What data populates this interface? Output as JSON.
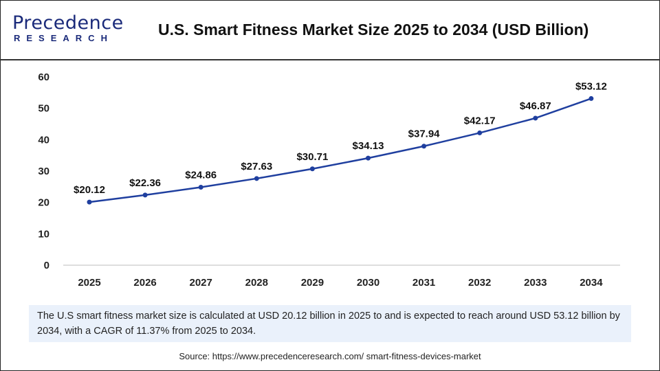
{
  "logo": {
    "line1": "Precedence",
    "line2": "RESEARCH"
  },
  "title": "U.S. Smart Fitness Market Size 2025 to 2034 (USD Billion)",
  "chart_data": {
    "type": "line",
    "categories": [
      "2025",
      "2026",
      "2027",
      "2028",
      "2029",
      "2030",
      "2031",
      "2032",
      "2033",
      "2034"
    ],
    "values": [
      20.12,
      22.36,
      24.86,
      27.63,
      30.71,
      34.13,
      37.94,
      42.17,
      46.87,
      53.12
    ],
    "data_labels": [
      "$20.12",
      "$22.36",
      "$24.86",
      "$27.63",
      "$30.71",
      "$34.13",
      "$37.94",
      "$42.17",
      "$46.87",
      "$53.12"
    ],
    "yticks": [
      0,
      10,
      20,
      30,
      40,
      50,
      60
    ],
    "ylim": [
      0,
      60
    ],
    "grid": false,
    "color": "#1f3f9f"
  },
  "description": "The U.S smart fitness market size is calculated at USD 20.12 billion in 2025 to and is expected to reach around USD 53.12 billion by 2034, with a CAGR of 11.37% from 2025 to 2034.",
  "source": "Source: https://www.precedenceresearch.com/ smart-fitness-devices-market"
}
